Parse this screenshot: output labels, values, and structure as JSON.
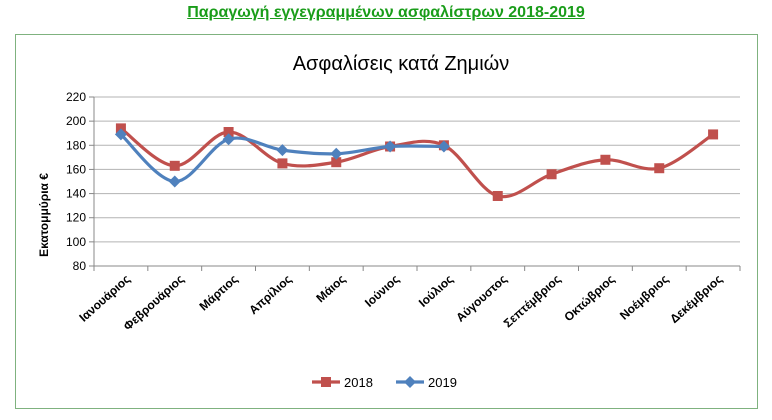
{
  "page": {
    "title": "Παραγωγή εγγεγραμμένων ασφαλίστρων 2018-2019",
    "title_color": "#1a9d1a"
  },
  "chart_data": {
    "type": "line",
    "title": "Ασφαλίσεις κατά Ζημιών",
    "xlabel": "",
    "ylabel": "Εκατομμύρια €",
    "categories": [
      "Ιανουάριος",
      "Φεβρουάριος",
      "Μάρτιος",
      "Απρίλιος",
      "Μάιος",
      "Ιούνιος",
      "Ιούλιος",
      "Αύγουστος",
      "Σεπτέμβριος",
      "Οκτώβριος",
      "Νοέμβριος",
      "Δεκέμβριος"
    ],
    "ylim": [
      80,
      220
    ],
    "yticks": [
      80,
      100,
      120,
      140,
      160,
      180,
      200,
      220
    ],
    "grid": true,
    "smooth": true,
    "legend_position": "bottom",
    "series": [
      {
        "name": "2018",
        "color": "#c0504d",
        "marker": "square",
        "values": [
          194,
          163,
          191,
          165,
          166,
          179,
          180,
          138,
          156,
          168,
          161,
          189
        ]
      },
      {
        "name": "2019",
        "color": "#4f81bd",
        "marker": "diamond",
        "values": [
          189,
          150,
          185,
          176,
          173,
          179,
          179,
          null,
          null,
          null,
          null,
          null
        ]
      }
    ]
  }
}
